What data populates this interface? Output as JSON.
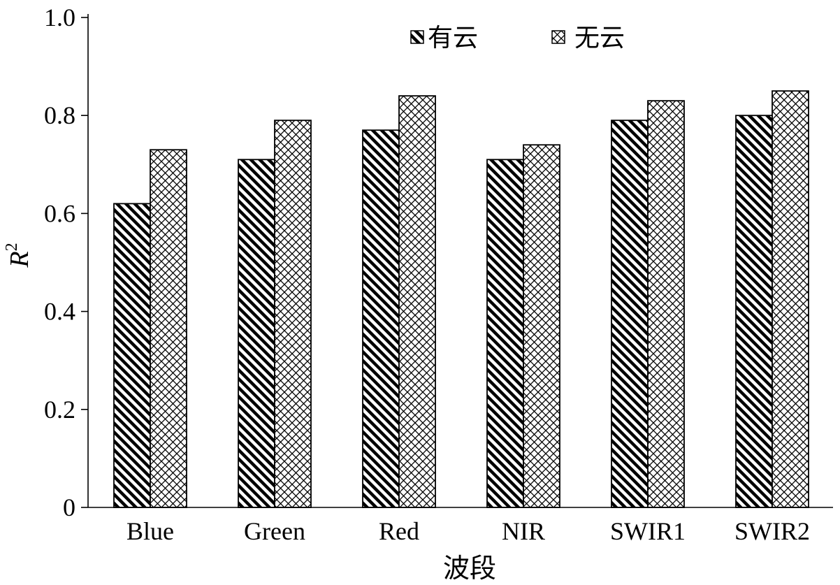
{
  "chart_data": {
    "type": "bar",
    "categories": [
      "Blue",
      "Green",
      "Red",
      "NIR",
      "SWIR1",
      "SWIR2"
    ],
    "series": [
      {
        "name": "有云",
        "pattern": "diagonal-stripes",
        "values": [
          0.62,
          0.71,
          0.77,
          0.71,
          0.79,
          0.8
        ]
      },
      {
        "name": "无云",
        "pattern": "crosshatch",
        "values": [
          0.73,
          0.79,
          0.84,
          0.74,
          0.83,
          0.85
        ]
      }
    ],
    "xlabel": "波段",
    "ylabel": "R",
    "ylabel_superscript": "2",
    "ylim": [
      0,
      1.0
    ],
    "yticks": [
      {
        "value": 0,
        "label": "0"
      },
      {
        "value": 0.2,
        "label": "0.2"
      },
      {
        "value": 0.4,
        "label": "0.4"
      },
      {
        "value": 0.6,
        "label": "0.6"
      },
      {
        "value": 0.8,
        "label": "0.8"
      },
      {
        "value": 1.0,
        "label": "1.0"
      }
    ],
    "grid": false,
    "legend_position": "top-center",
    "colors": {
      "stroke": "#000000",
      "background": "#ffffff"
    }
  }
}
